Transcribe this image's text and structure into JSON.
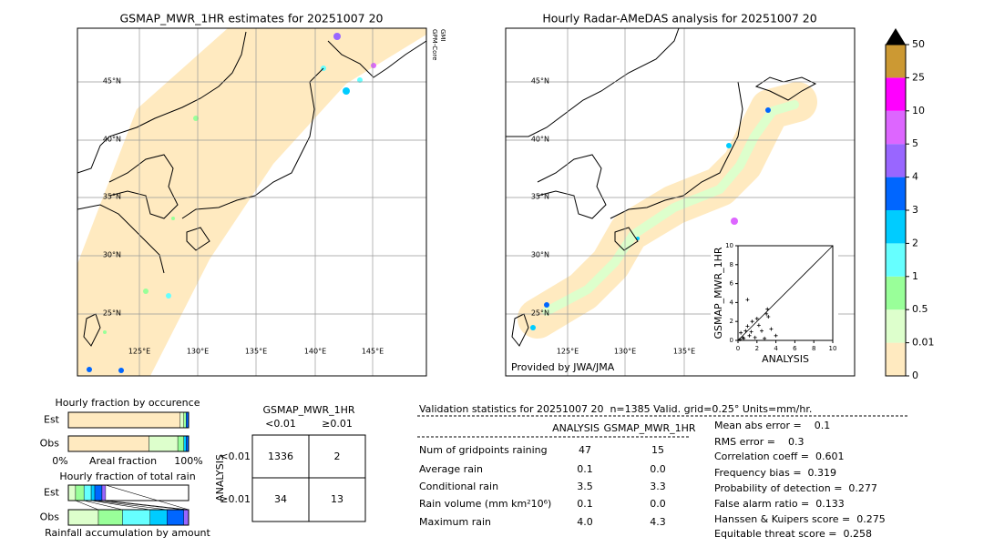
{
  "left_map": {
    "title": "GSMAP_MWR_1HR estimates for 20251007 20",
    "sensor_labels": [
      "GPM-Core",
      "GMI"
    ],
    "lat_labels": [
      "45°N",
      "40°N",
      "35°N",
      "30°N",
      "25°N"
    ],
    "lon_labels": [
      "125°E",
      "130°E",
      "135°E",
      "140°E",
      "145°E"
    ]
  },
  "right_map": {
    "title": "Hourly Radar-AMeDAS analysis for 20251007 20",
    "lat_labels": [
      "45°N",
      "40°N",
      "35°N",
      "30°N",
      "25°N"
    ],
    "lon_labels": [
      "125°E",
      "130°E",
      "135°E"
    ],
    "credit": "Provided by JWA/JMA"
  },
  "scatter": {
    "type": "scatter",
    "xlabel": "ANALYSIS",
    "ylabel": "GSMAP_MWR_1HR",
    "xlim": [
      0,
      10
    ],
    "ylim": [
      0,
      10
    ],
    "xticks": [
      0,
      2,
      4,
      6,
      8,
      10
    ],
    "yticks": [
      0,
      2,
      4,
      6,
      8,
      10
    ],
    "x": [
      0.2,
      0.5,
      0.8,
      1.0,
      1.2,
      1.5,
      2.0,
      2.5,
      3.0,
      3.2,
      3.5,
      1.0,
      3.1,
      2.8,
      0.3,
      1.8,
      2.2,
      4.0,
      0.6,
      1.4
    ],
    "y": [
      0.1,
      0.3,
      1.0,
      1.5,
      0.5,
      2.0,
      2.3,
      1.0,
      2.8,
      2.5,
      1.2,
      4.3,
      3.3,
      0.2,
      0.8,
      0.3,
      1.6,
      0.5,
      0.2,
      0.9
    ]
  },
  "colorbar": {
    "ticks": [
      0,
      0.01,
      0.5,
      1,
      2,
      3,
      4,
      5,
      10,
      25,
      50
    ],
    "colors": [
      "#ffeac0",
      "#ddffcc",
      "#99ff99",
      "#66ffff",
      "#00ccff",
      "#0066ff",
      "#9966ff",
      "#dd66ff",
      "#ff00ff",
      "#cc9933"
    ],
    "extend_color": "#000000"
  },
  "occurrence": {
    "title": "Hourly fraction by occurence",
    "xlabel": "Areal fraction",
    "xtick_labels": [
      "0%",
      "100%"
    ],
    "bars": [
      {
        "label": "Est",
        "values": [
          0.93,
          0.03,
          0.02,
          0.02
        ],
        "colors": [
          "#ffeac0",
          "#ddffcc",
          "#99ff99",
          "#0066ff"
        ]
      },
      {
        "label": "Obs",
        "values": [
          0.67,
          0.24,
          0.05,
          0.02,
          0.02
        ],
        "colors": [
          "#ffeac0",
          "#ddffcc",
          "#99ff99",
          "#00ccff",
          "#0066ff"
        ]
      }
    ]
  },
  "total_rain": {
    "title": "Hourly fraction of total rain",
    "xlabel": "Rainfall accumulation by amount",
    "bars": [
      {
        "label": "Est",
        "values": [
          0.06,
          0.07,
          0.06,
          0.03,
          0.06,
          0.03
        ],
        "colors": [
          "#ddffcc",
          "#99ff99",
          "#66ffff",
          "#00ccff",
          "#0066ff",
          "#9966ff"
        ]
      },
      {
        "label": "Obs",
        "values": [
          0.25,
          0.2,
          0.23,
          0.14,
          0.14,
          0.04
        ],
        "colors": [
          "#ddffcc",
          "#99ff99",
          "#66ffff",
          "#00ccff",
          "#0066ff",
          "#9966ff"
        ]
      }
    ]
  },
  "contingency": {
    "title": "GSMAP_MWR_1HR",
    "col_labels": [
      "<0.01",
      "≥0.01"
    ],
    "row_title": "ANALYSIS",
    "row_labels": [
      "<0.01",
      "≥0.01"
    ],
    "cells": [
      [
        1336,
        2
      ],
      [
        34,
        13
      ]
    ]
  },
  "validation": {
    "header": "Validation statistics for 20251007 20  n=1385 Valid. grid=0.25° Units=mm/hr.",
    "columns": [
      "ANALYSIS",
      "GSMAP_MWR_1HR"
    ],
    "rows": [
      {
        "label": "Num of gridpoints raining",
        "values": [
          "47",
          "15"
        ]
      },
      {
        "label": "Average rain",
        "values": [
          "0.1",
          "0.0"
        ]
      },
      {
        "label": "Conditional rain",
        "values": [
          "3.5",
          "3.3"
        ]
      },
      {
        "label": "Rain volume (mm km²10⁶)",
        "values": [
          "0.1",
          "0.0"
        ]
      },
      {
        "label": "Maximum rain",
        "values": [
          "4.0",
          "4.3"
        ]
      }
    ],
    "scores": [
      "Mean abs error =    0.1",
      "RMS error =    0.3",
      "Correlation coeff =  0.601",
      "Frequency bias =  0.319",
      "Probability of detection =  0.277",
      "False alarm ratio =  0.133",
      "Hanssen & Kuipers score =  0.275",
      "Equitable threat score =  0.258"
    ]
  }
}
